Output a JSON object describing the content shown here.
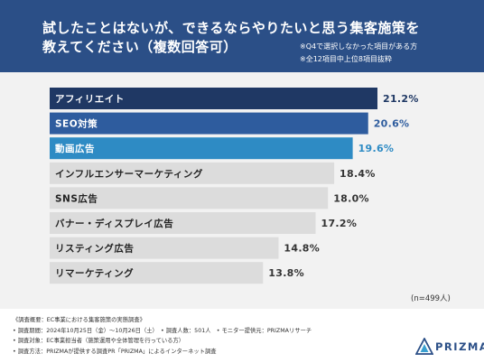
{
  "header": {
    "title_line1": "試したことはないが、できるならやりたいと思う集客施策を",
    "title_line2": "教えてください（複数回答可）",
    "note1": "※Q4で選択しなかった項目がある方",
    "note2": "※全12項目中上位8項目抜粋"
  },
  "chart_data": {
    "type": "bar",
    "orientation": "horizontal",
    "categories": [
      "アフィリエイト",
      "SEO対策",
      "動画広告",
      "インフルエンサーマーケティング",
      "SNS広告",
      "バナー・ディスプレイ広告",
      "リスティング広告",
      "リマーケティング"
    ],
    "values": [
      21.2,
      20.6,
      19.6,
      18.4,
      18.0,
      17.2,
      14.8,
      13.8
    ],
    "value_labels": [
      "21.2%",
      "20.6%",
      "19.6%",
      "18.4%",
      "18.0%",
      "17.2%",
      "14.8%",
      "13.8%"
    ],
    "bar_colors": [
      "#1f3864",
      "#2e5c9e",
      "#2e8bc4",
      "#dcdcdc",
      "#dcdcdc",
      "#dcdcdc",
      "#dcdcdc",
      "#dcdcdc"
    ],
    "label_colors": [
      "#ffffff",
      "#ffffff",
      "#ffffff",
      "#222222",
      "#222222",
      "#222222",
      "#222222",
      "#222222"
    ],
    "value_colors": [
      "#1f3864",
      "#2e5c9e",
      "#2e8bc4",
      "#333333",
      "#333333",
      "#333333",
      "#333333",
      "#333333"
    ],
    "xlim": [
      0,
      21.2
    ],
    "grid": false,
    "legend": "none"
  },
  "sample_size": "(n=499人)",
  "footer": {
    "lines": [
      "《調査概要：EC事業における集客施策の実態調査》",
      "• 調査期間：2024年10月25日（金）〜10月26日（土）　• 調査人数：501人　• モニター提供元：PRIZMAリサーチ",
      "• 調査対象：EC事業担当者（施策運用や全体管理を行っている方）",
      "• 調査方法：PRIZMAが提供する調査PR「PRIZMA」によるインターネット調査"
    ]
  },
  "logo": {
    "text": "PRIZMA",
    "icon": "prizma-logo-icon",
    "color": "#2b4f87"
  }
}
